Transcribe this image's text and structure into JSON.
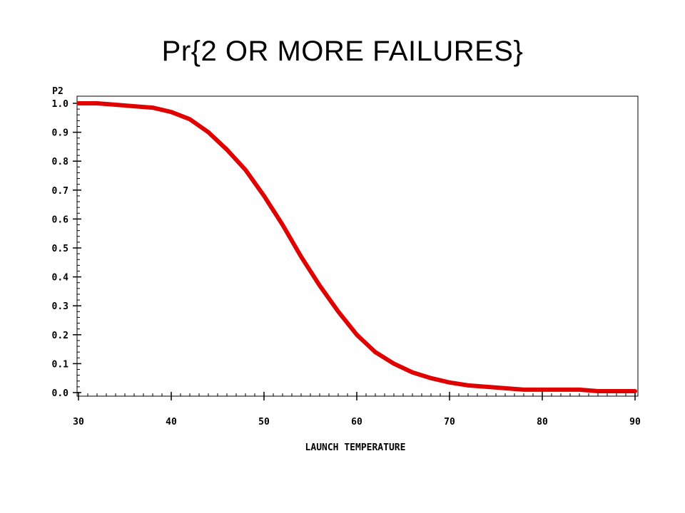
{
  "chart_data": {
    "type": "line",
    "title": "Pr{2 OR MORE FAILURES}",
    "xlabel": "LAUNCH TEMPERATURE",
    "ylabel": "P2",
    "xlim": [
      30,
      90
    ],
    "ylim": [
      0,
      1
    ],
    "x_ticks": [
      30,
      40,
      50,
      60,
      70,
      80,
      90
    ],
    "x_tick_labels": [
      "30",
      "40",
      "50",
      "60",
      "70",
      "80",
      "90"
    ],
    "y_ticks": [
      0,
      0.1,
      0.2,
      0.3,
      0.4,
      0.5,
      0.6,
      0.7,
      0.8,
      0.9,
      1.0
    ],
    "y_tick_labels": [
      "0.0",
      "0.1",
      "0.2",
      "0.3",
      "0.4",
      "0.5",
      "0.6",
      "0.7",
      "0.8",
      "0.9",
      "1.0"
    ],
    "grid": false,
    "legend": "none",
    "series": [
      {
        "color": "#e00000",
        "x": [
          30,
          32,
          34,
          36,
          38,
          40,
          42,
          44,
          46,
          48,
          50,
          52,
          54,
          56,
          58,
          60,
          62,
          64,
          66,
          68,
          70,
          72,
          74,
          76,
          78,
          80,
          82,
          84,
          86,
          88,
          90
        ],
        "y": [
          1.0,
          1.0,
          0.995,
          0.99,
          0.985,
          0.97,
          0.945,
          0.9,
          0.84,
          0.77,
          0.68,
          0.58,
          0.47,
          0.37,
          0.28,
          0.2,
          0.14,
          0.1,
          0.07,
          0.05,
          0.035,
          0.025,
          0.02,
          0.015,
          0.01,
          0.01,
          0.01,
          0.01,
          0.005,
          0.005,
          0.005
        ]
      }
    ]
  }
}
